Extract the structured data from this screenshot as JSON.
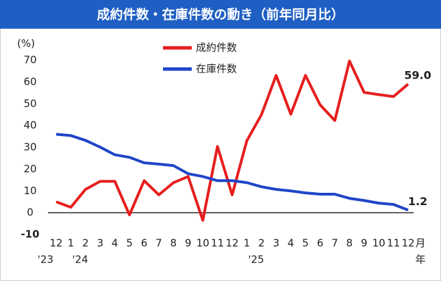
{
  "chart_data": {
    "type": "line",
    "title": "成約件数・在庫件数の動き（前年同月比）",
    "ylabel": "(%)",
    "categories": [
      "12",
      "1",
      "2",
      "3",
      "4",
      "5",
      "6",
      "7",
      "8",
      "9",
      "10",
      "11",
      "12",
      "1",
      "2",
      "3",
      "4",
      "5",
      "6",
      "7",
      "8",
      "9",
      "10",
      "11",
      "12"
    ],
    "year_labels": [
      "'23",
      "'24",
      null,
      null,
      null,
      null,
      null,
      null,
      null,
      null,
      null,
      null,
      null,
      "'25",
      null,
      null,
      null,
      null,
      null,
      null,
      null,
      null,
      null,
      null,
      null
    ],
    "xlabel": "月",
    "xlabel2": "年",
    "series": [
      {
        "name": "成約件数",
        "color": "#e61e1e",
        "values": [
          5,
          2.5,
          10.7,
          14.4,
          14.4,
          -1,
          14.7,
          8.2,
          13.8,
          16.6,
          -3.5,
          30.4,
          8.2,
          33,
          45,
          63,
          45.2,
          63,
          49.5,
          42.3,
          69.6,
          55.2,
          54.2,
          53.3,
          59.0
        ],
        "value_labels": [
          null,
          null,
          null,
          null,
          null,
          null,
          null,
          null,
          null,
          null,
          null,
          null,
          null,
          null,
          null,
          null,
          null,
          null,
          null,
          null,
          null,
          null,
          null,
          null,
          "59.0"
        ]
      },
      {
        "name": "在庫件数",
        "color": "#1f45c8",
        "values": [
          36,
          35.4,
          33.2,
          30.1,
          26.6,
          25.4,
          22.9,
          22.3,
          21.6,
          17.9,
          16.6,
          14.7,
          14.7,
          13.8,
          11.9,
          10.7,
          10,
          9.1,
          8.5,
          8.5,
          6.6,
          5.6,
          4.4,
          3.8,
          1.2
        ],
        "value_labels": [
          null,
          null,
          null,
          null,
          null,
          null,
          null,
          null,
          null,
          null,
          null,
          null,
          null,
          null,
          null,
          null,
          null,
          null,
          null,
          null,
          null,
          null,
          null,
          null,
          "1.2"
        ]
      }
    ],
    "ylim": [
      -10,
      70
    ],
    "yticks": [
      -10,
      0,
      10,
      20,
      30,
      40,
      50,
      60,
      70
    ],
    "negative_tick_color": "#e61e1e",
    "title_band_color": "#1f5fc4",
    "grid": false
  }
}
